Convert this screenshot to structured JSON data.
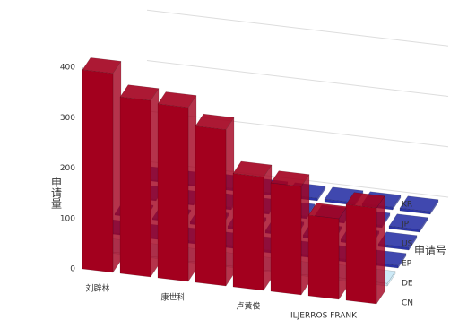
{
  "chart_data": {
    "type": "bar3d",
    "y_label": "申请量",
    "depth_label": "申请号",
    "categories": [
      "刘辟林",
      null,
      "康世科",
      null,
      "卢黄俊",
      null,
      "ILJERROS FRANK",
      null
    ],
    "series": [
      {
        "name": "CN",
        "color": "#a3001e",
        "values": [
          395,
          350,
          345,
          310,
          225,
          215,
          160,
          190
        ]
      },
      {
        "name": "DE",
        "color": "#c9e8f6",
        "values": [
          0,
          0,
          0,
          0,
          0,
          0,
          5,
          5
        ]
      },
      {
        "name": "EP",
        "color": "#2b34a6",
        "values": [
          0,
          0,
          5,
          5,
          5,
          5,
          5,
          5
        ]
      },
      {
        "name": "US",
        "color": "#2b34a6",
        "values": [
          0,
          0,
          5,
          5,
          5,
          5,
          5,
          5
        ]
      },
      {
        "name": "JP",
        "color": "#2b34a6",
        "values": [
          0,
          0,
          5,
          5,
          5,
          5,
          5,
          5
        ]
      },
      {
        "name": "KR",
        "color": "#2b34a6",
        "values": [
          0,
          0,
          5,
          5,
          5,
          5,
          5,
          5
        ]
      }
    ],
    "ylim": [
      0,
      400
    ],
    "yticks": [
      0,
      100,
      200,
      300,
      400
    ],
    "grid": true
  }
}
